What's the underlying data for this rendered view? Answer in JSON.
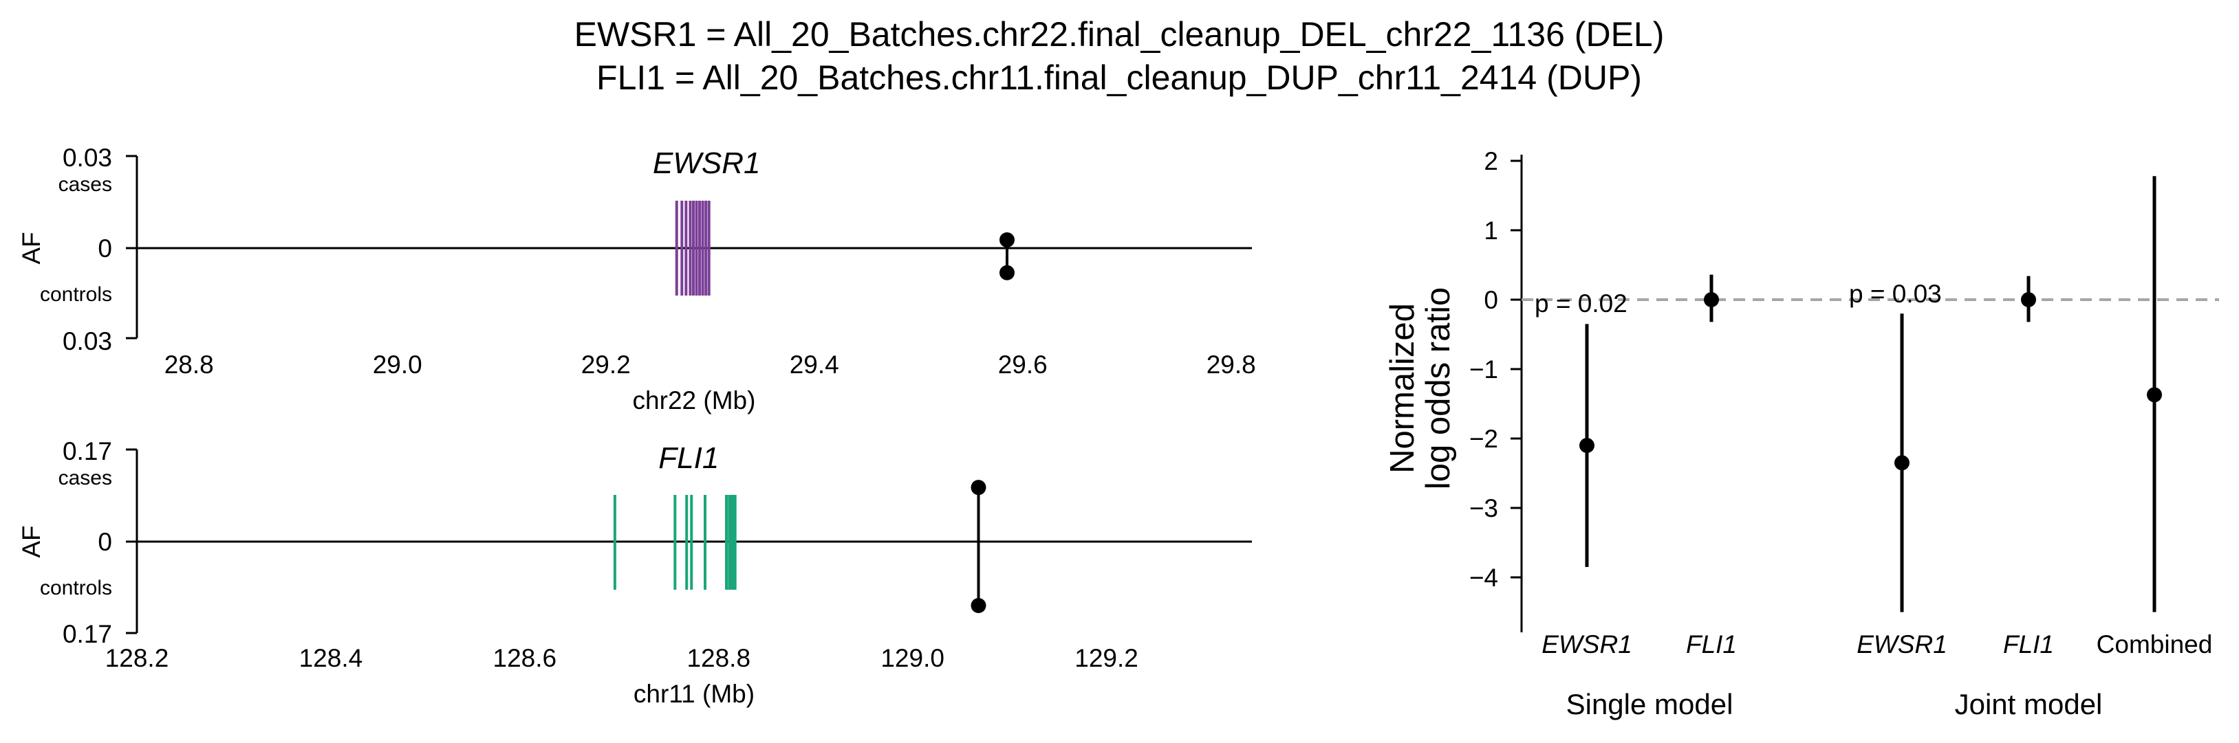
{
  "title_lines": [
    "EWSR1 = All_20_Batches.chr22.final_cleanup_DEL_chr22_1136 (DEL)",
    "FLI1 = All_20_Batches.chr11.final_cleanup_DUP_chr11_2414 (DUP)"
  ],
  "chart_data": [
    {
      "type": "scatter",
      "panel": "EWSR1 locus",
      "gene": "EWSR1",
      "gene_color": "#7b3f98",
      "xlabel": "chr22 (Mb)",
      "ylabel": "AF",
      "xlim": [
        28.75,
        29.82
      ],
      "xticks": [
        28.8,
        29.0,
        29.2,
        29.4,
        29.6,
        29.8
      ],
      "xtick_labels": [
        "28.8",
        "29.0",
        "29.2",
        "29.4",
        "29.6",
        "29.8"
      ],
      "yticks": [
        {
          "label": "0.03",
          "sub": "cases"
        },
        {
          "label": "0"
        },
        {
          "label": "0.03",
          "sub": "controls"
        }
      ],
      "ymax": 0.03,
      "exons_mb": [
        29.268,
        29.273,
        29.277,
        29.281,
        29.284,
        29.287,
        29.29,
        29.293,
        29.296,
        29.299
      ],
      "variant": {
        "pos_mb": 29.585,
        "af_cases": 0.002,
        "af_controls": 0.008
      }
    },
    {
      "type": "scatter",
      "panel": "FLI1 locus",
      "gene": "FLI1",
      "gene_color": "#1aa67a",
      "xlabel": "chr11 (Mb)",
      "ylabel": "AF",
      "xlim": [
        128.2,
        129.35
      ],
      "xticks": [
        128.2,
        128.4,
        128.6,
        128.8,
        129.0,
        129.2
      ],
      "xtick_labels": [
        "128.2",
        "128.4",
        "128.6",
        "128.8",
        "129.0",
        "129.2"
      ],
      "yticks": [
        {
          "label": "0.17",
          "sub": "cases"
        },
        {
          "label": "0"
        },
        {
          "label": "0.17",
          "sub": "controls"
        }
      ],
      "ymax": 0.17,
      "exons_mb": [
        128.693,
        128.755,
        128.767,
        128.772,
        128.786,
        128.808,
        128.811,
        128.813,
        128.815,
        128.817
      ],
      "variant": {
        "pos_mb": 129.068,
        "af_cases": 0.1,
        "af_controls": 0.118
      }
    },
    {
      "type": "scatter",
      "panel": "odds ratios",
      "ylabel_lines": [
        "Normalized",
        "log odds ratio"
      ],
      "ylim": [
        -4.85,
        2.1
      ],
      "yticks": [
        2,
        1,
        0,
        -1,
        -2,
        -3,
        -4
      ],
      "ytick_labels": [
        "2",
        "1",
        "0",
        "−1",
        "−2",
        "−3",
        "−4"
      ],
      "reference_line": 0,
      "points": [
        {
          "label": "EWSR1",
          "italic": true,
          "group": "Single model",
          "value": -2.1,
          "ci": [
            -3.85,
            -0.35
          ]
        },
        {
          "label": "FLI1",
          "italic": true,
          "group": "Single model",
          "value": 0.0,
          "ci": [
            -0.32,
            0.36
          ]
        },
        {
          "label": "EWSR1",
          "italic": true,
          "group": "Joint model",
          "value": -2.35,
          "ci": [
            -4.5,
            -0.2
          ]
        },
        {
          "label": "FLI1",
          "italic": true,
          "group": "Joint model",
          "value": 0.0,
          "ci": [
            -0.32,
            0.34
          ]
        },
        {
          "label": "Combined",
          "italic": false,
          "group": "Joint model",
          "value": -1.37,
          "ci": [
            -4.5,
            1.78
          ]
        }
      ],
      "groups": [
        "Single model",
        "Joint model"
      ],
      "pvalues": [
        {
          "group": "Single model",
          "text": "p = 0.02"
        },
        {
          "group": "Joint model",
          "text": "p = 0.03"
        }
      ]
    }
  ]
}
